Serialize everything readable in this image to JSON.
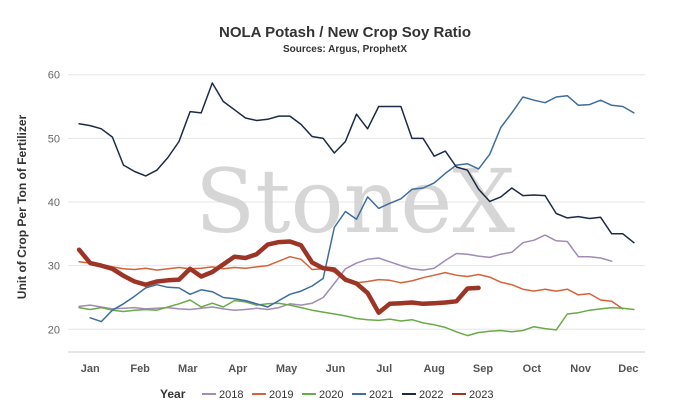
{
  "chart_data": {
    "type": "line",
    "title": "NOLA Potash / New Crop Soy Ratio",
    "subtitle": "Sources: Argus, ProphetX",
    "ylabel": "Unit of Crop Per Ton of Fertilizer",
    "watermark": "StoneX",
    "legend_title": "Year",
    "legend_position": "bottom",
    "ylim": [
      18,
      62
    ],
    "yticks": [
      20,
      30,
      40,
      50,
      60
    ],
    "xlim": [
      1,
      53
    ],
    "xticks": [
      {
        "label": "Jan",
        "x": 3
      },
      {
        "label": "Feb",
        "x": 7.5
      },
      {
        "label": "Mar",
        "x": 11.8
      },
      {
        "label": "Apr",
        "x": 16.3
      },
      {
        "label": "May",
        "x": 20.7
      },
      {
        "label": "Jun",
        "x": 25.1
      },
      {
        "label": "Jul",
        "x": 29.5
      },
      {
        "label": "Aug",
        "x": 34
      },
      {
        "label": "Sep",
        "x": 38.4
      },
      {
        "label": "Oct",
        "x": 42.8
      },
      {
        "label": "Nov",
        "x": 47.2
      },
      {
        "label": "Dec",
        "x": 51.5
      }
    ],
    "grid": true,
    "series": [
      {
        "name": "2018",
        "color": "#a08cb6",
        "width": 1.5,
        "x": [
          2,
          3,
          4,
          5,
          6,
          7,
          8,
          9,
          10,
          11,
          12,
          13,
          14,
          15,
          16,
          17,
          18,
          19,
          20,
          21,
          22,
          23,
          24,
          25,
          26,
          27,
          28,
          29,
          30,
          31,
          32,
          33,
          34,
          35,
          36,
          37,
          38,
          39,
          40,
          41,
          42,
          43,
          44,
          45,
          46,
          47,
          48,
          49,
          50
        ],
        "y": [
          23.6,
          23.8,
          23.5,
          23.2,
          23.3,
          23.4,
          23.2,
          23.3,
          23.4,
          23.2,
          23.1,
          23.3,
          23.5,
          23.2,
          23.0,
          23.1,
          23.3,
          23.1,
          23.4,
          24.0,
          23.8,
          24.1,
          25.0,
          27.2,
          29.5,
          30.4,
          31.0,
          31.2,
          30.6,
          30.0,
          29.5,
          29.3,
          29.6,
          30.8,
          31.9,
          31.8,
          31.5,
          31.3,
          31.8,
          32.1,
          33.6,
          34.0,
          34.8,
          33.9,
          33.8,
          31.4,
          31.4,
          31.2,
          30.7
        ]
      },
      {
        "name": "2019",
        "color": "#d4633a",
        "width": 1.5,
        "x": [
          2,
          3,
          4,
          5,
          6,
          7,
          8,
          9,
          10,
          11,
          12,
          13,
          14,
          15,
          16,
          17,
          18,
          19,
          20,
          21,
          22,
          23,
          24,
          25,
          26,
          27,
          28,
          29,
          30,
          31,
          32,
          33,
          34,
          35,
          36,
          37,
          38,
          39,
          40,
          41,
          42,
          43,
          44,
          45,
          46,
          47,
          48,
          49,
          50,
          51
        ],
        "y": [
          30.6,
          30.4,
          30.2,
          29.8,
          29.5,
          29.4,
          29.6,
          29.3,
          29.5,
          29.7,
          29.5,
          29.6,
          29.8,
          29.5,
          29.7,
          29.6,
          29.8,
          30.0,
          30.7,
          31.4,
          31.0,
          29.4,
          29.5,
          29.0,
          27.5,
          27.3,
          27.5,
          27.8,
          27.7,
          27.3,
          27.6,
          28.1,
          28.5,
          28.9,
          28.5,
          28.3,
          28.6,
          28.2,
          27.4,
          27.0,
          26.3,
          26.0,
          26.3,
          26.0,
          26.3,
          25.4,
          25.6,
          24.6,
          24.4,
          23.2
        ]
      },
      {
        "name": "2020",
        "color": "#6aaa47",
        "width": 1.5,
        "x": [
          2,
          3,
          4,
          5,
          6,
          7,
          8,
          9,
          10,
          11,
          12,
          13,
          14,
          15,
          16,
          17,
          18,
          19,
          20,
          21,
          22,
          23,
          24,
          25,
          26,
          27,
          28,
          29,
          30,
          31,
          32,
          33,
          34,
          35,
          36,
          37,
          38,
          39,
          40,
          41,
          42,
          43,
          44,
          45,
          46,
          47,
          48,
          49,
          50,
          51,
          52
        ],
        "y": [
          23.4,
          23.1,
          23.4,
          23.0,
          22.8,
          23.0,
          23.1,
          23.0,
          23.5,
          24.0,
          24.6,
          23.5,
          24.1,
          23.5,
          24.5,
          24.3,
          23.8,
          24.0,
          24.1,
          23.8,
          23.4,
          23.0,
          22.7,
          22.4,
          22.1,
          21.7,
          21.5,
          21.4,
          21.6,
          21.3,
          21.5,
          21.0,
          20.7,
          20.3,
          19.6,
          19.0,
          19.5,
          19.7,
          19.8,
          19.6,
          19.8,
          20.4,
          20.1,
          19.9,
          22.4,
          22.6,
          23.0,
          23.2,
          23.4,
          23.3,
          23.1
        ]
      },
      {
        "name": "2021",
        "color": "#3f6d9d",
        "width": 1.5,
        "x": [
          3,
          4,
          5,
          6,
          7,
          8,
          9,
          10,
          11,
          12,
          13,
          14,
          15,
          16,
          17,
          18,
          19,
          20,
          21,
          22,
          23,
          24,
          25,
          26,
          27,
          28,
          29,
          30,
          31,
          32,
          33,
          34,
          35,
          36,
          37,
          38,
          39,
          40,
          41,
          42,
          43,
          44,
          45,
          46,
          47,
          48,
          49,
          50,
          51,
          52
        ],
        "y": [
          21.8,
          21.2,
          23.0,
          24.0,
          25.2,
          26.5,
          27.0,
          26.6,
          26.5,
          25.5,
          26.2,
          25.9,
          25.0,
          24.8,
          24.5,
          24.0,
          23.5,
          24.5,
          25.5,
          26.0,
          26.8,
          28.0,
          36.0,
          38.5,
          37.3,
          40.8,
          39.0,
          39.8,
          40.5,
          42.0,
          42.2,
          43.0,
          44.5,
          45.8,
          46.0,
          45.2,
          47.5,
          51.7,
          54.0,
          56.5,
          56.0,
          55.6,
          56.5,
          56.7,
          55.2,
          55.3,
          56.0,
          55.2,
          55.0,
          54.0
        ]
      },
      {
        "name": "2022",
        "color": "#1c2b44",
        "width": 1.5,
        "x": [
          2,
          3,
          4,
          5,
          6,
          7,
          8,
          9,
          10,
          11,
          12,
          13,
          14,
          15,
          16,
          17,
          18,
          19,
          20,
          21,
          22,
          23,
          24,
          25,
          26,
          27,
          28,
          29,
          30,
          31,
          32,
          33,
          34,
          35,
          36,
          37,
          38,
          39,
          40,
          41,
          42,
          43,
          44,
          45,
          46,
          47,
          48,
          49,
          50,
          51,
          52
        ],
        "y": [
          52.3,
          52.0,
          51.5,
          50.2,
          45.8,
          44.8,
          44.1,
          45.0,
          47.0,
          49.5,
          54.2,
          54.0,
          58.7,
          55.8,
          54.5,
          53.2,
          52.8,
          53.0,
          53.5,
          53.5,
          52.2,
          50.3,
          50.0,
          47.7,
          49.5,
          53.8,
          51.5,
          55.0,
          55.0,
          55.0,
          50.0,
          50.0,
          47.2,
          48.0,
          45.5,
          45.0,
          42.0,
          40.1,
          40.8,
          42.2,
          41.0,
          41.1,
          41.0,
          38.2,
          37.5,
          37.7,
          37.4,
          37.6,
          35.0,
          35.0,
          33.6
        ]
      },
      {
        "name": "2023",
        "color": "#9c3525",
        "width": 4.5,
        "x": [
          2,
          3,
          4,
          5,
          6,
          7,
          8,
          9,
          10,
          11,
          12,
          13,
          14,
          15,
          16,
          17,
          18,
          19,
          20,
          21,
          22,
          23,
          24,
          25,
          26,
          27,
          28,
          29,
          30,
          31,
          32,
          33,
          34,
          35,
          36,
          37,
          38
        ],
        "y": [
          32.5,
          30.4,
          30.0,
          29.5,
          28.4,
          27.5,
          27.0,
          27.5,
          27.7,
          27.8,
          29.5,
          28.3,
          29.0,
          30.2,
          31.4,
          31.2,
          31.8,
          33.3,
          33.7,
          33.8,
          33.2,
          30.5,
          29.6,
          29.4,
          27.8,
          27.2,
          25.7,
          22.6,
          24.0,
          24.1,
          24.2,
          24.0,
          24.1,
          24.2,
          24.4,
          26.4,
          26.5
        ]
      }
    ]
  }
}
